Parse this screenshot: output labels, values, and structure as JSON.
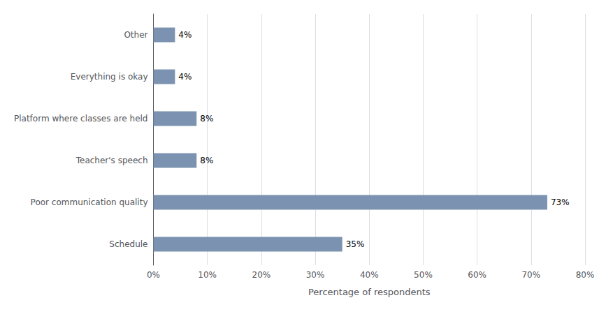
{
  "chart_data": {
    "type": "bar",
    "orientation": "horizontal",
    "categories": [
      "Schedule",
      "Poor communication quality",
      "Teacher's speech",
      "Platform where classes are held",
      "Everything is okay",
      "Other"
    ],
    "values": [
      35,
      73,
      8,
      8,
      4,
      4
    ],
    "value_labels": [
      "35%",
      "73%",
      "8%",
      "8%",
      "4%",
      "4%"
    ],
    "data_labels": true,
    "color": "#7b93b0",
    "xlabel": "Percentage of respondents",
    "xlim": [
      0,
      80
    ],
    "xticks": [
      {
        "value": 0,
        "label": "0%"
      },
      {
        "value": 10,
        "label": "10%"
      },
      {
        "value": 20,
        "label": "20%"
      },
      {
        "value": 30,
        "label": "30%"
      },
      {
        "value": 40,
        "label": "40%"
      },
      {
        "value": 50,
        "label": "50%"
      },
      {
        "value": 60,
        "label": "60%"
      },
      {
        "value": 70,
        "label": "70%"
      },
      {
        "value": 80,
        "label": "80%"
      }
    ],
    "grid": true
  }
}
